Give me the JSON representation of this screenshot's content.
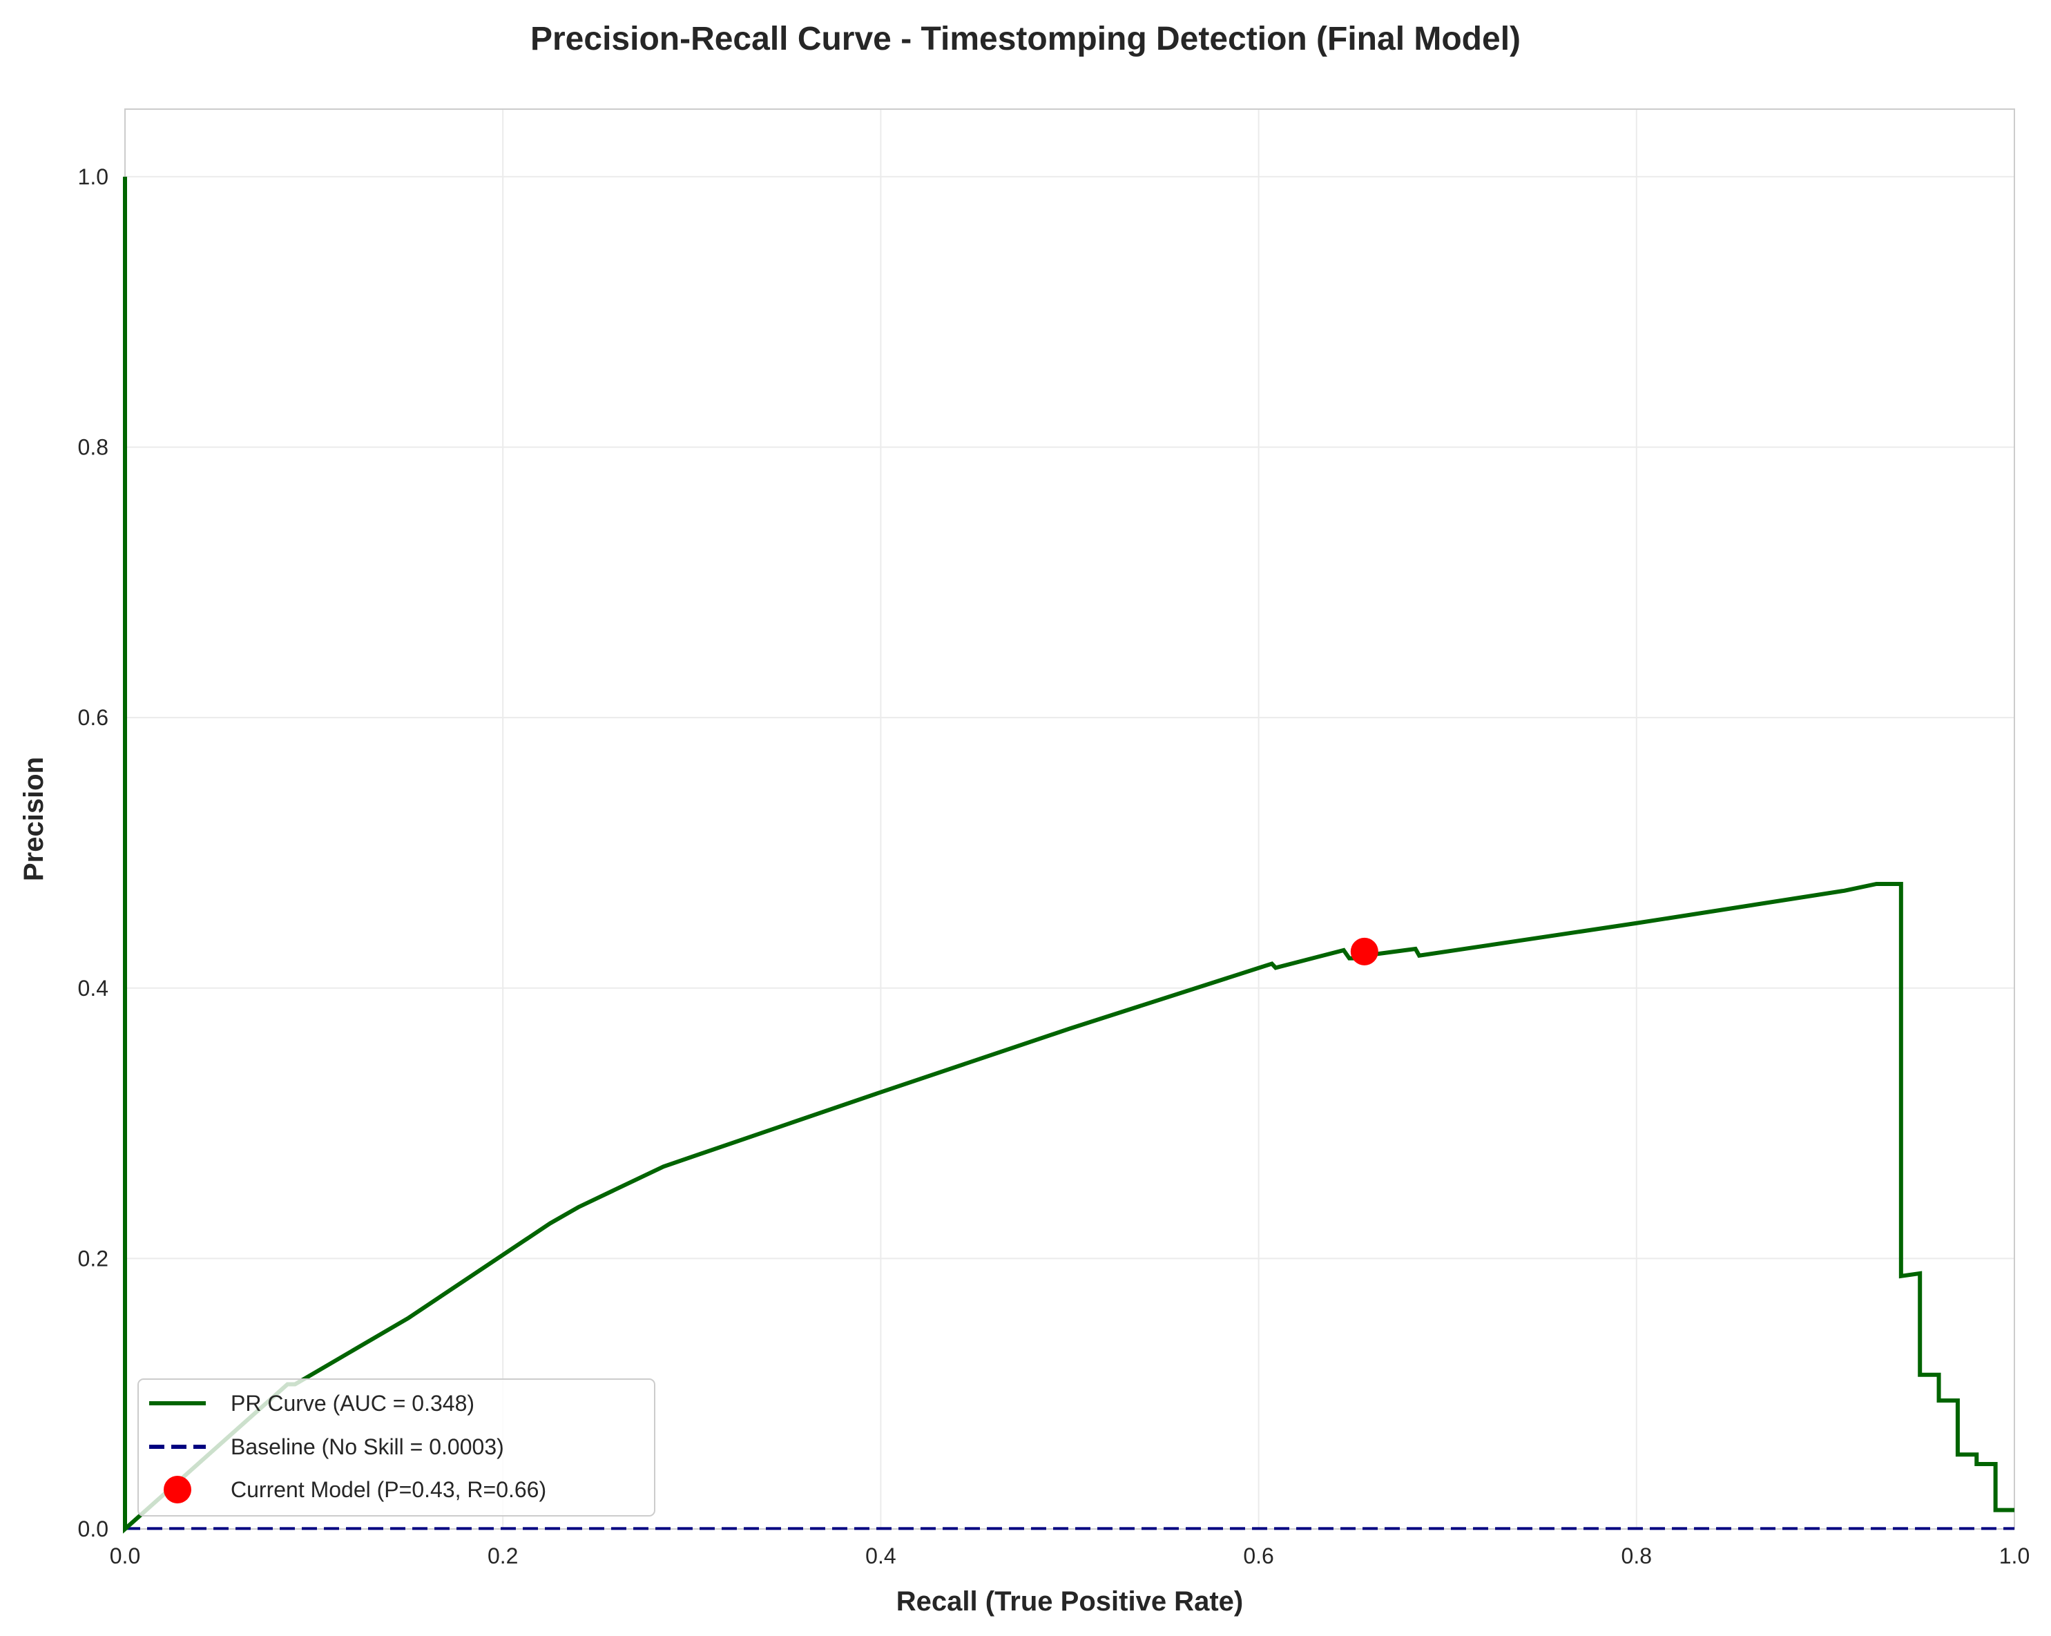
{
  "chart_data": {
    "type": "line",
    "title": "Precision-Recall Curve - Timestomping Detection (Final Model)",
    "xlabel": "Recall (True Positive Rate)",
    "ylabel": "Precision",
    "xlim": [
      0.0,
      1.0
    ],
    "ylim": [
      0.0,
      1.05
    ],
    "xticks": [
      0.0,
      0.2,
      0.4,
      0.6,
      0.8,
      1.0
    ],
    "xtick_labels": [
      "0.0",
      "0.2",
      "0.4",
      "0.6",
      "0.8",
      "1.0"
    ],
    "yticks": [
      0.0,
      0.2,
      0.4,
      0.6,
      0.8,
      1.0
    ],
    "ytick_labels": [
      "0.0",
      "0.2",
      "0.4",
      "0.6",
      "0.8",
      "1.0"
    ],
    "grid": true,
    "legend_position": "lower-left",
    "series": [
      {
        "name": "PR Curve (AUC = 0.348)",
        "style": "solid",
        "color": "#006400",
        "x": [
          0.0,
          0.0,
          0.0,
          0.0,
          0.086,
          0.09,
          0.15,
          0.225,
          0.24,
          0.285,
          0.4,
          0.5,
          0.607,
          0.609,
          0.645,
          0.648,
          0.652,
          0.656,
          0.683,
          0.685,
          0.8,
          0.91,
          0.927,
          0.94,
          0.94,
          0.94,
          0.95,
          0.95,
          0.96,
          0.96,
          0.97,
          0.97,
          0.98,
          0.98,
          0.99,
          0.99,
          1.0
        ],
        "y": [
          1.0,
          0.0,
          0.0,
          0.0,
          0.107,
          0.107,
          0.156,
          0.226,
          0.238,
          0.268,
          0.323,
          0.37,
          0.418,
          0.415,
          0.428,
          0.422,
          0.422,
          0.424,
          0.429,
          0.424,
          0.448,
          0.472,
          0.477,
          0.477,
          0.187,
          0.187,
          0.189,
          0.114,
          0.114,
          0.095,
          0.095,
          0.055,
          0.055,
          0.048,
          0.048,
          0.014,
          0.014
        ]
      },
      {
        "name": "Baseline (No Skill = 0.0003)",
        "style": "dashed",
        "color": "#000080",
        "x": [
          0.0,
          1.0
        ],
        "y": [
          0.0003,
          0.0003
        ]
      },
      {
        "name": "Current Model (P=0.43, R=0.66)",
        "style": "marker",
        "color": "#ff0000",
        "x": [
          0.656
        ],
        "y": [
          0.427
        ]
      }
    ]
  }
}
